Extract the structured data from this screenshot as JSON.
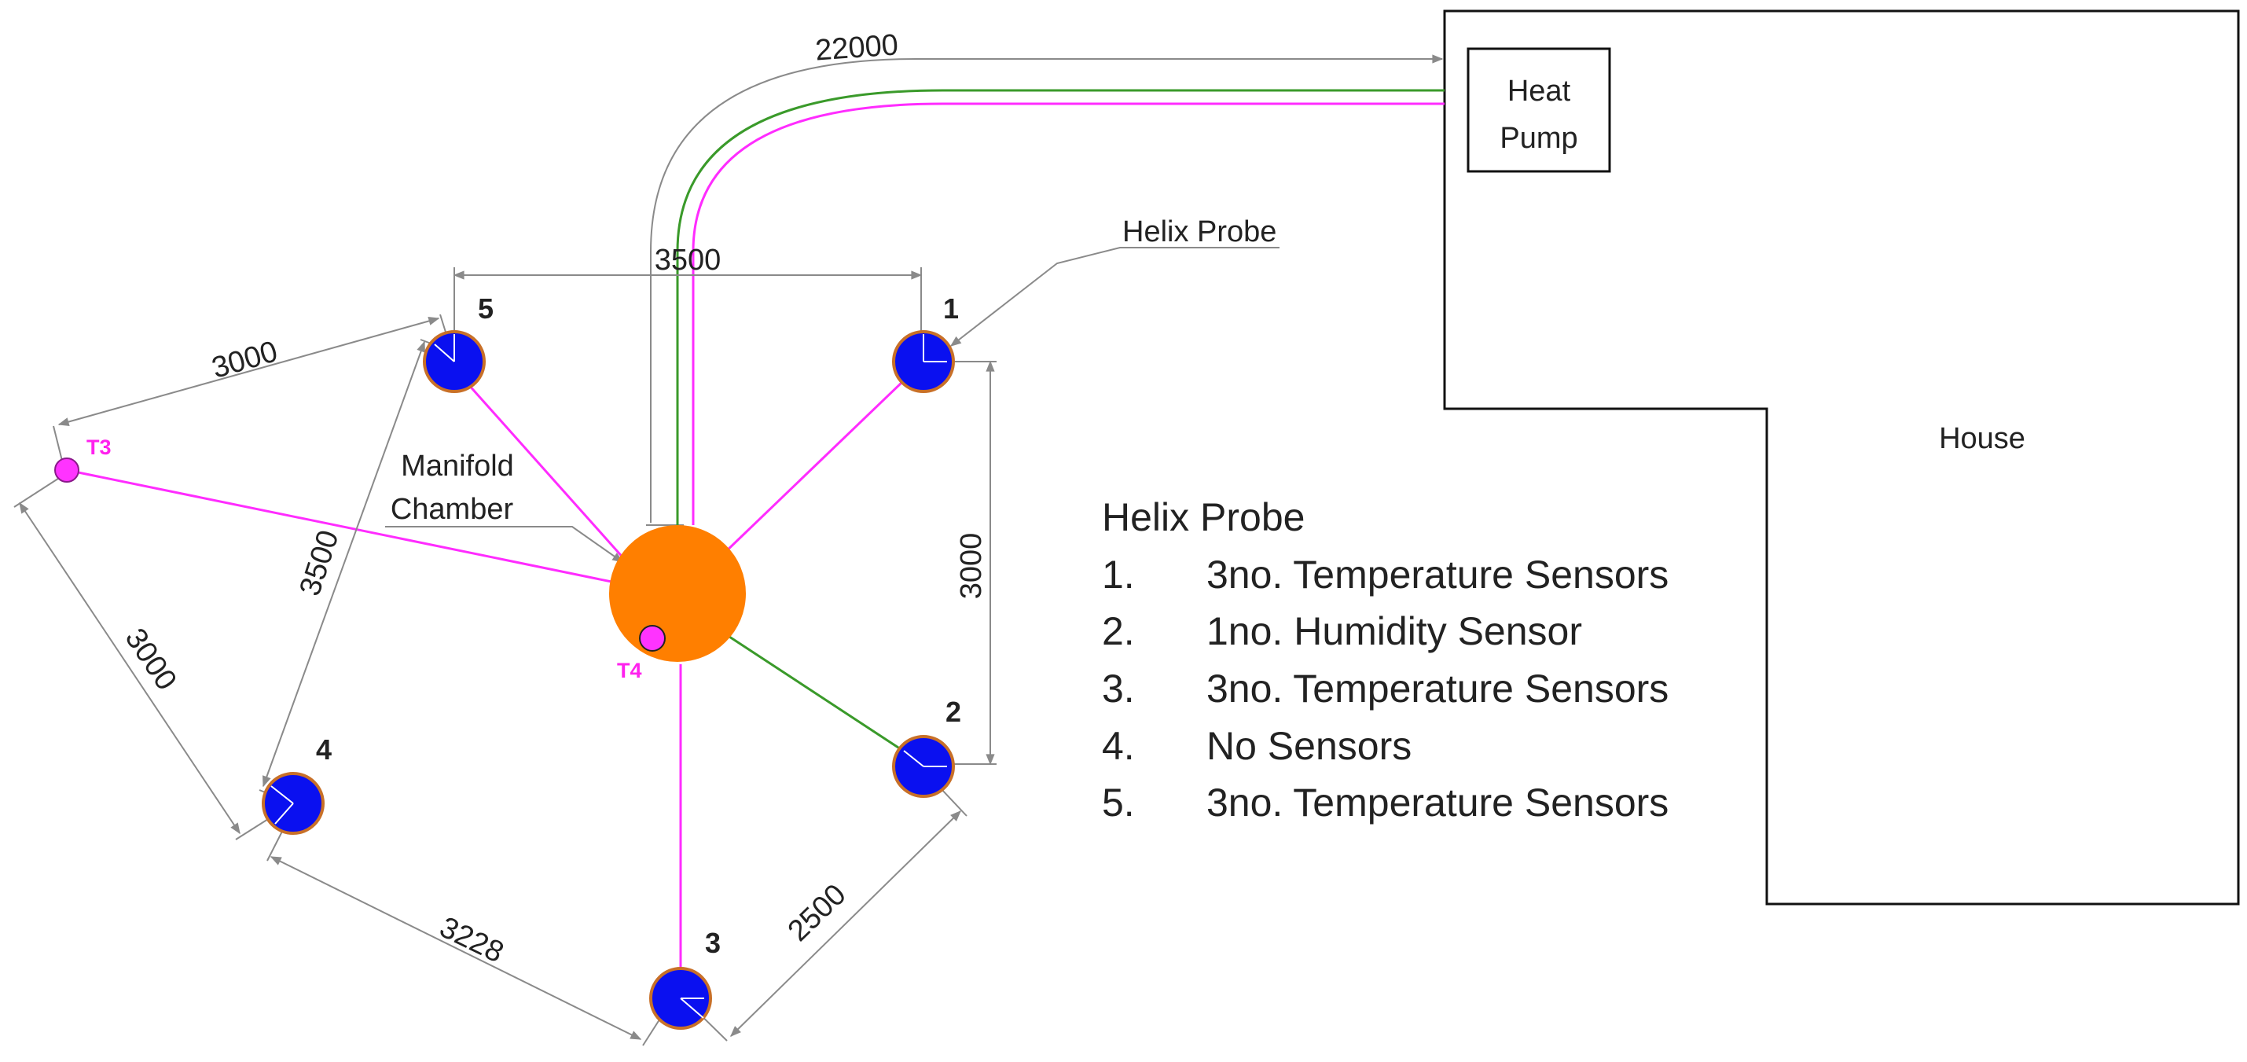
{
  "colors": {
    "pipe_magenta": "#ff2cff",
    "pipe_green": "#3a9a2a",
    "probe_fill": "#0a10f0",
    "probe_ring": "#c87028",
    "manifold_fill": "#ff7f00",
    "sensor_fill": "#ff33ff",
    "sensor_text": "#ff22ee",
    "dimension": "#8a8a8a",
    "outline": "#111111"
  },
  "labels": {
    "heat_pump_line1": "Heat",
    "heat_pump_line2": "Pump",
    "house": "House",
    "helix_probe_callout": "Helix Probe",
    "manifold_line1": "Manifold",
    "manifold_line2": "Chamber"
  },
  "sensors": {
    "t3": "T3",
    "t4": "T4"
  },
  "probes": {
    "p1": "1",
    "p2": "2",
    "p3": "3",
    "p4": "4",
    "p5": "5"
  },
  "dimensions": {
    "pipe_run": "22000",
    "p5_to_p1": "3500",
    "p1_to_p2": "3000",
    "p2_to_p3": "2500",
    "p3_to_p4": "3228",
    "p4_to_p5": "3500",
    "t3_to_p5": "3000",
    "t3_to_p4": "3000"
  },
  "legend": {
    "title": "Helix Probe",
    "items": [
      {
        "num": "1.",
        "text": "3no. Temperature Sensors"
      },
      {
        "num": "2.",
        "text": "1no. Humidity Sensor"
      },
      {
        "num": "3.",
        "text": "3no. Temperature Sensors"
      },
      {
        "num": "4.",
        "text": "No Sensors"
      },
      {
        "num": "5.",
        "text": "3no. Temperature Sensors"
      }
    ]
  }
}
